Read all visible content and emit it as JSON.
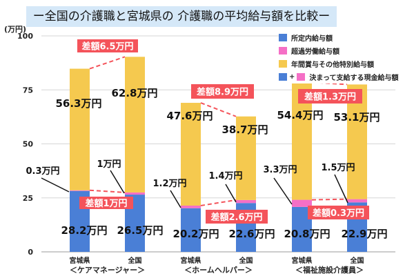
{
  "title": "ー全国の介護職と宮城県の 介護職の平均給与額を比較ー",
  "chart_data": {
    "type": "bar",
    "stacked": true,
    "ylabel": "(万円)",
    "ylim": [
      0,
      100
    ],
    "yticks": [
      0,
      25,
      50,
      75,
      100
    ],
    "grid": true,
    "legend_position": "right",
    "groups": [
      "＜ケアマネージャー＞",
      "＜ホームヘルパー＞",
      "＜福祉施設介護員＞"
    ],
    "categories": [
      "宮城県",
      "全国",
      "宮城県",
      "全国",
      "宮城県",
      "全国"
    ],
    "series": [
      {
        "name": "所定内給与額",
        "color": "#4a7fd6",
        "values": [
          28.2,
          26.5,
          20.2,
          22.6,
          20.8,
          22.9
        ],
        "labels": [
          "28.2万円",
          "26.5万円",
          "20.2万円",
          "22.6万円",
          "20.8万円",
          "22.9万円"
        ]
      },
      {
        "name": "超過労働給与額",
        "color": "#f56fc6",
        "values": [
          0.3,
          1,
          1.2,
          1.4,
          3.3,
          1.5
        ],
        "labels": [
          "0.3万円",
          "1万円",
          "1.2万円",
          "1.4万円",
          "3.3万円",
          "1.5万円"
        ]
      },
      {
        "name": "年間賞与その他特別給与額",
        "color": "#f5c94f",
        "values": [
          56.3,
          62.8,
          47.6,
          38.7,
          54.4,
          53.1
        ],
        "labels": [
          "56.3万円",
          "62.8万円",
          "47.6万円",
          "38.7万円",
          "54.4万円",
          "53.1万円"
        ]
      }
    ],
    "combined_legend": "決まって支給する現金給与額",
    "differences": {
      "total": [
        "差額6.5万円",
        "差額8.9万円",
        "差額1.3万円"
      ],
      "monthly": [
        "差額1万円",
        "差額2.6万円",
        "差額0.3万円"
      ]
    },
    "diff_color": "#f4535a"
  }
}
